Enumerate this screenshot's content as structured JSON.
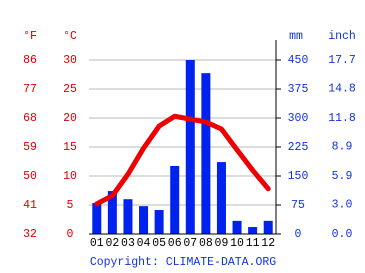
{
  "chart_data": {
    "type": "combo",
    "categories": [
      "01",
      "02",
      "03",
      "04",
      "05",
      "06",
      "07",
      "08",
      "09",
      "10",
      "11",
      "12"
    ],
    "series": [
      {
        "type": "bar",
        "axis": "y2",
        "color": "#0022ee",
        "values": [
          80,
          111,
          90,
          72,
          62,
          176,
          450,
          416,
          186,
          34,
          18,
          34
        ]
      },
      {
        "type": "line",
        "color": "#ee0000",
        "values": [
          5.2,
          6.6,
          10.3,
          14.8,
          18.6,
          20.3,
          19.8,
          19.3,
          18.1,
          14.5,
          11,
          7.8
        ]
      }
    ],
    "y3label": "°F",
    "y3lim": [
      32,
      86
    ],
    "y3ticks": [
      32,
      41,
      50,
      59,
      68,
      77,
      86
    ],
    "ylabel": "°C",
    "ylim": [
      0,
      30
    ],
    "yticks": [
      0,
      5,
      10,
      15,
      20,
      25,
      30
    ],
    "y2label": "mm",
    "y2lim": [
      0,
      450
    ],
    "y2ticks": [
      0,
      75,
      150,
      225,
      300,
      375,
      450
    ],
    "y4label": "inch",
    "y4lim": [
      0,
      17.7
    ],
    "y4ticks": [
      {
        "value": 0,
        "label": "0.0"
      },
      {
        "value": 3,
        "label": "3.0"
      },
      5.9,
      8.9,
      11.8,
      14.8,
      17.7
    ],
    "grid": true,
    "source": "Copyright: CLIMATE-DATA.ORG"
  }
}
